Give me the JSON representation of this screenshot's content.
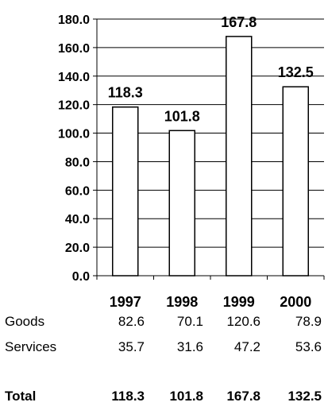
{
  "chart_data": {
    "type": "bar",
    "categories": [
      "1997",
      "1998",
      "1999",
      "2000"
    ],
    "values": [
      118.3,
      101.8,
      167.8,
      132.5
    ],
    "data_labels": [
      "118.3",
      "101.8",
      "167.8",
      "132.5"
    ],
    "yticks": [
      "0.0",
      "20.0",
      "40.0",
      "60.0",
      "80.0",
      "100.0",
      "120.0",
      "140.0",
      "160.0",
      "180.0"
    ],
    "ylim": [
      0,
      180
    ],
    "title": "",
    "xlabel": "",
    "ylabel": "",
    "grid": true,
    "bar_fill": "#ffffff",
    "bar_stroke": "#000000"
  },
  "table": {
    "rows": [
      {
        "label": "Goods",
        "values": [
          "82.6",
          "70.1",
          "120.6",
          "78.9"
        ]
      },
      {
        "label": "Services",
        "values": [
          "35.7",
          "31.6",
          "47.2",
          "53.6"
        ]
      }
    ],
    "total": {
      "label": "Total",
      "values": [
        "118.3",
        "101.8",
        "167.8",
        "132.5"
      ]
    }
  }
}
